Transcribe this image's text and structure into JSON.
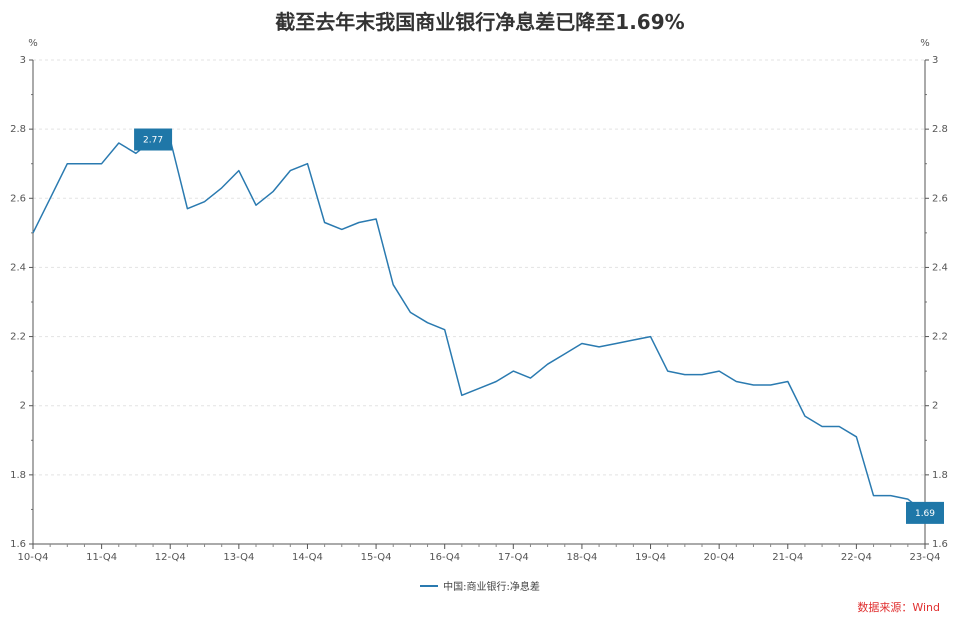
{
  "chart_data": {
    "type": "line",
    "title": "截至去年末我国商业银行净息差已降至1.69%",
    "ylabel_left": "%",
    "ylabel_right": "%",
    "ylim": [
      1.6,
      3
    ],
    "yticks": [
      1.6,
      1.8,
      2,
      2.2,
      2.4,
      2.6,
      2.8,
      3
    ],
    "y_tick_labels": [
      "1.6",
      "1.8",
      "2",
      "2.2",
      "2.4",
      "2.6",
      "2.8",
      "3"
    ],
    "grid": true,
    "x_tick_labels": [
      "10-Q4",
      "11-Q4",
      "12-Q4",
      "13-Q4",
      "14-Q4",
      "15-Q4",
      "16-Q4",
      "17-Q4",
      "18-Q4",
      "19-Q4",
      "20-Q4",
      "21-Q4",
      "22-Q4",
      "23-Q4"
    ],
    "x": [
      "10-Q4",
      "11-Q1",
      "11-Q2",
      "11-Q3",
      "11-Q4",
      "12-Q1",
      "12-Q2",
      "12-Q3",
      "12-Q4",
      "13-Q1",
      "13-Q2",
      "13-Q3",
      "13-Q4",
      "14-Q1",
      "14-Q2",
      "14-Q3",
      "14-Q4",
      "15-Q1",
      "15-Q2",
      "15-Q3",
      "15-Q4",
      "16-Q1",
      "16-Q2",
      "16-Q3",
      "16-Q4",
      "17-Q1",
      "17-Q2",
      "17-Q3",
      "17-Q4",
      "18-Q1",
      "18-Q2",
      "18-Q3",
      "18-Q4",
      "19-Q1",
      "19-Q2",
      "19-Q3",
      "19-Q4",
      "20-Q1",
      "20-Q2",
      "20-Q3",
      "20-Q4",
      "21-Q1",
      "21-Q2",
      "21-Q3",
      "21-Q4",
      "22-Q1",
      "22-Q2",
      "22-Q3",
      "22-Q4",
      "23-Q1",
      "23-Q2",
      "23-Q3",
      "23-Q4"
    ],
    "series": [
      {
        "name": "中国:商业银行:净息差",
        "color": "#2a7ab0",
        "values": [
          2.5,
          2.6,
          2.7,
          2.7,
          2.7,
          2.76,
          2.73,
          2.77,
          2.77,
          2.57,
          2.59,
          2.63,
          2.68,
          2.58,
          2.62,
          2.68,
          2.7,
          2.53,
          2.51,
          2.53,
          2.54,
          2.35,
          2.27,
          2.24,
          2.22,
          2.03,
          2.05,
          2.07,
          2.1,
          2.08,
          2.12,
          2.15,
          2.18,
          2.17,
          2.18,
          2.19,
          2.2,
          2.1,
          2.09,
          2.09,
          2.1,
          2.07,
          2.06,
          2.06,
          2.07,
          1.97,
          1.94,
          1.94,
          1.91,
          1.74,
          1.74,
          1.73,
          1.69
        ]
      }
    ],
    "annotations": [
      {
        "x": "12-Q3",
        "y": 2.77,
        "text": "2.77"
      },
      {
        "x": "23-Q4",
        "y": 1.69,
        "text": "1.69"
      }
    ],
    "annotation_color": "#1f77a8",
    "legend_placement": "bottom-center"
  },
  "legend": {
    "label": "中国:商业银行:净息差"
  },
  "source": {
    "text": "数据来源：Wind",
    "color": "#e03030"
  }
}
